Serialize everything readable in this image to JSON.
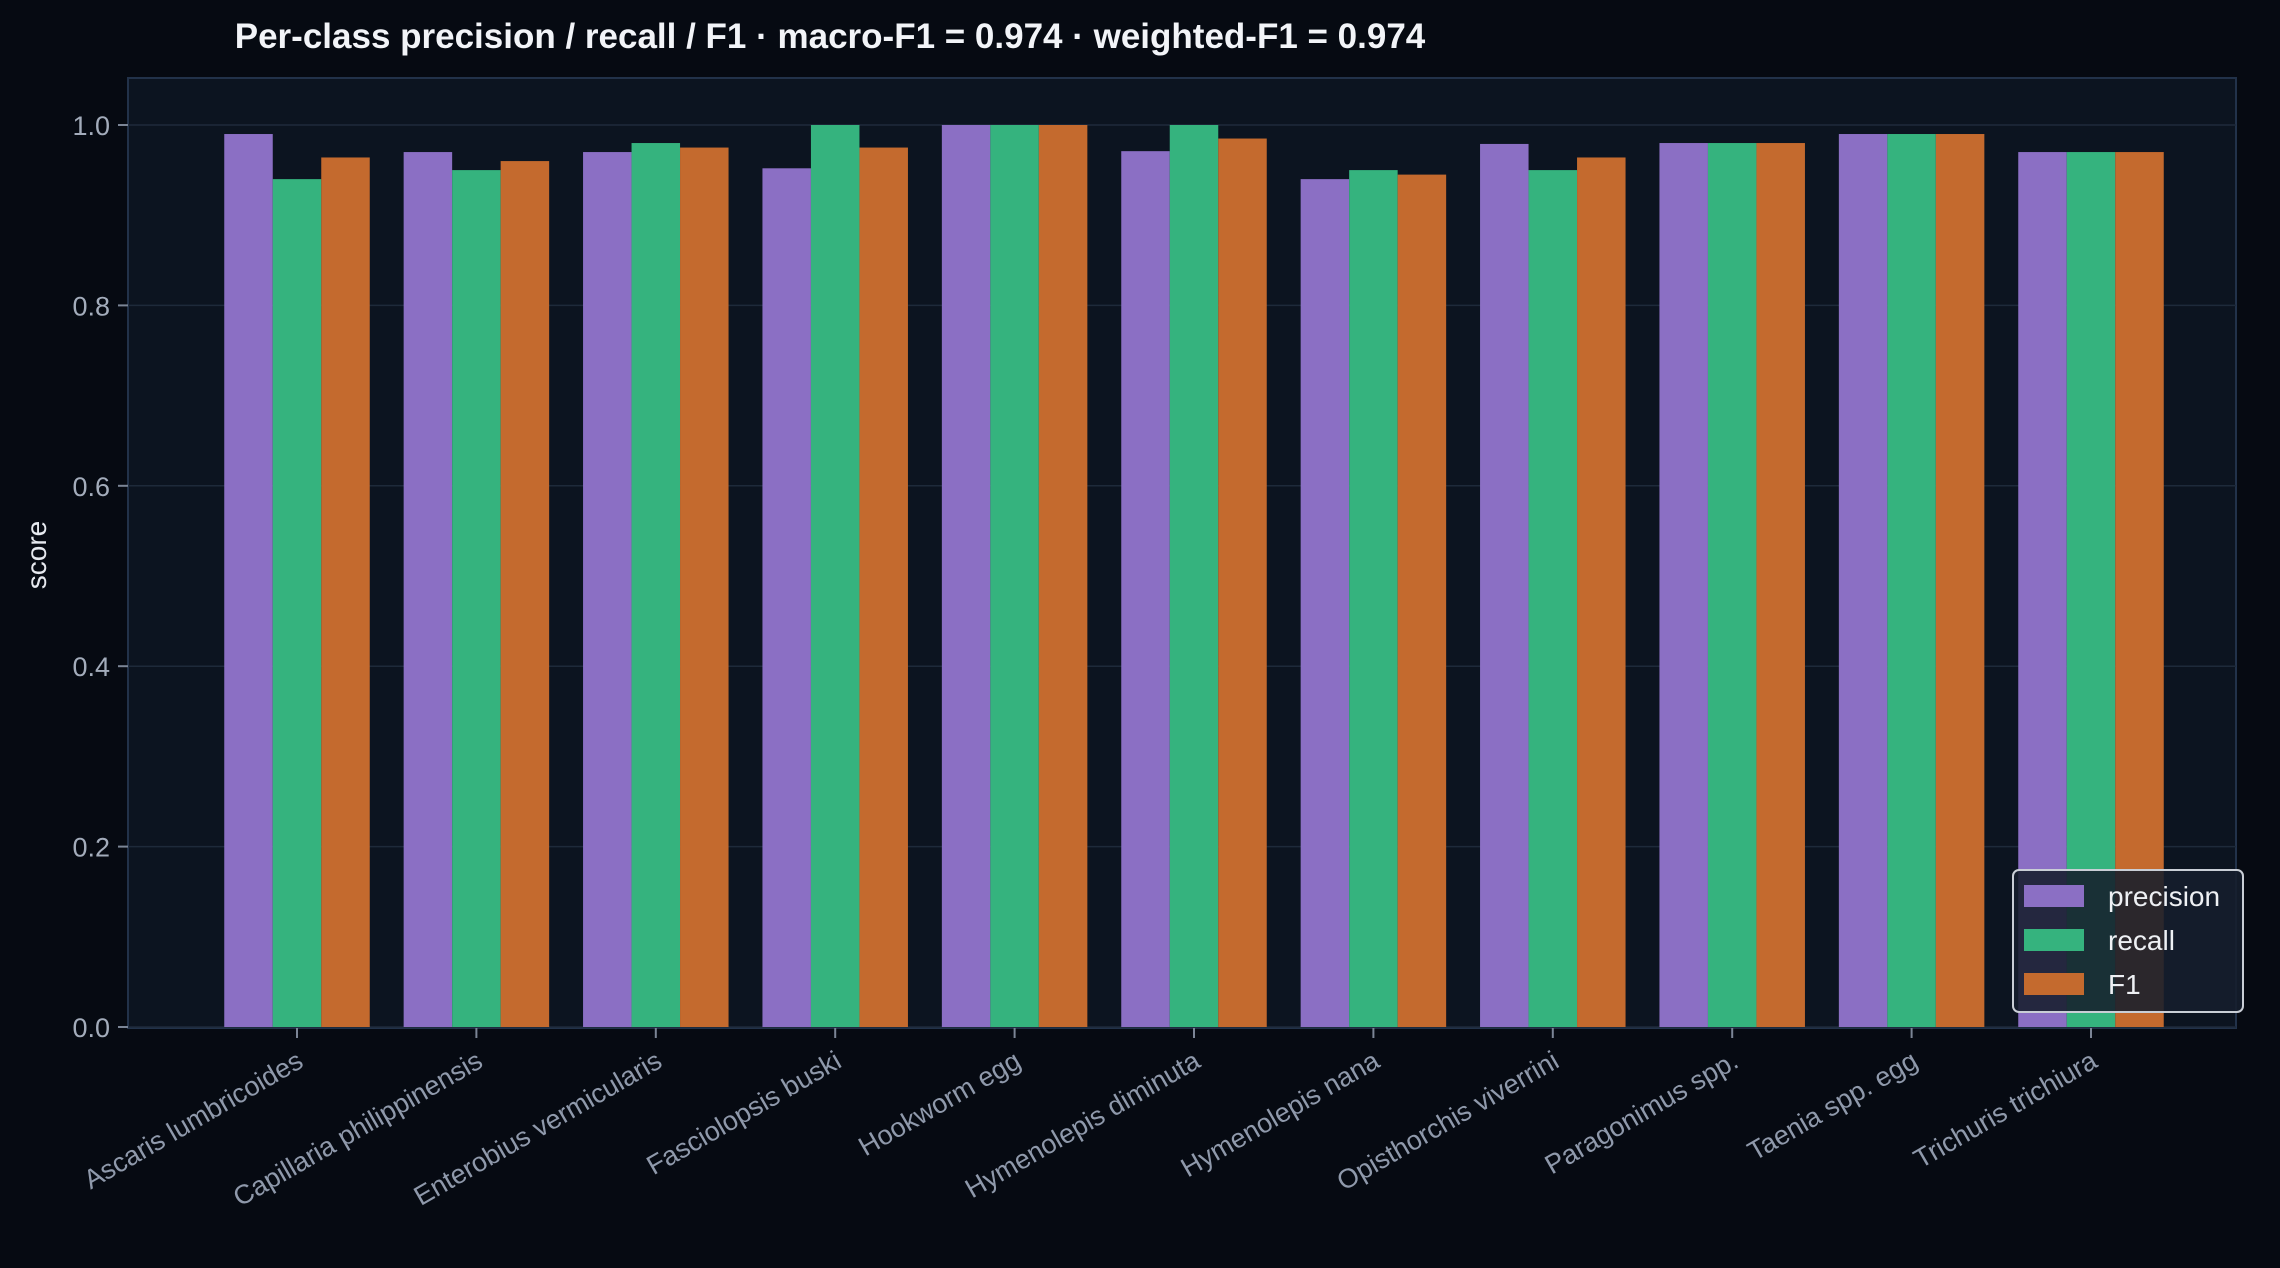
{
  "chart_data": {
    "type": "bar",
    "title": "Per-class precision / recall / F1 · macro-F1 = 0.974 · weighted-F1 = 0.974",
    "xlabel": "",
    "ylabel": "score",
    "ylim": [
      0,
      1.05
    ],
    "yticks": [
      "0.0",
      "0.2",
      "0.4",
      "0.6",
      "0.8",
      "1.0"
    ],
    "grid": true,
    "legend_position": "lower-right",
    "categories": [
      "Ascaris lumbricoides",
      "Capillaria philippinensis",
      "Enterobius vermicularis",
      "Fasciolopsis buski",
      "Hookworm egg",
      "Hymenolepis diminuta",
      "Hymenolepis nana",
      "Opisthorchis viverrini",
      "Paragonimus spp.",
      "Taenia spp. egg",
      "Trichuris trichiura"
    ],
    "series": [
      {
        "name": "precision",
        "color": "#8b6fc4",
        "values": [
          0.99,
          0.97,
          0.97,
          0.952,
          1.0,
          0.971,
          0.94,
          0.979,
          0.98,
          0.99,
          0.97
        ]
      },
      {
        "name": "recall",
        "color": "#35b37e",
        "values": [
          0.94,
          0.95,
          0.98,
          1.0,
          1.0,
          1.0,
          0.95,
          0.95,
          0.98,
          0.99,
          0.97
        ]
      },
      {
        "name": "F1",
        "color": "#c46a2e",
        "values": [
          0.964,
          0.96,
          0.975,
          0.975,
          1.0,
          0.985,
          0.945,
          0.964,
          0.98,
          0.99,
          0.97
        ]
      }
    ]
  }
}
